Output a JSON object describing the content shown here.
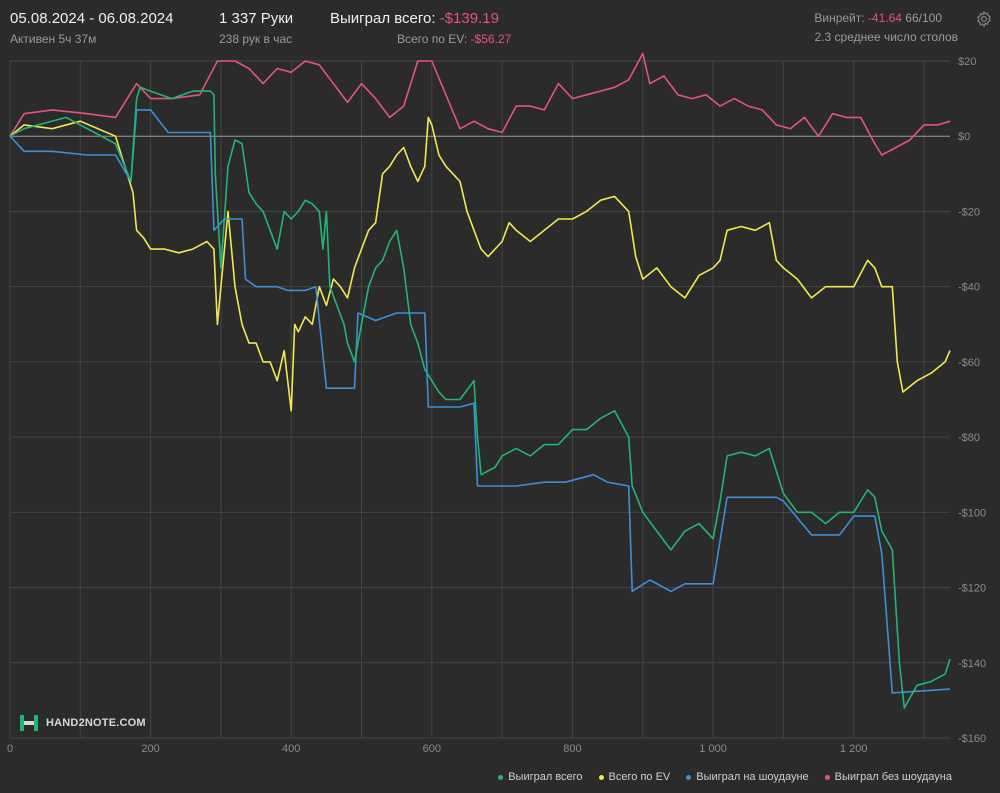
{
  "header": {
    "date_range": "05.08.2024 - 06.08.2024",
    "active": "Активен 5ч 37м",
    "hands": "1 337 Руки",
    "hands_rate": "238 рук в час",
    "won_label": "Выиграл всего:",
    "won_value": "-$139.19",
    "ev_label": "Всего по EV:",
    "ev_value": "-$56.27",
    "winrate_label": "Винрейт:",
    "winrate_value": "-41.64",
    "winrate_unit": "66/100",
    "avg_tables": "2.3 среднее число столов"
  },
  "logo_text": "HAND2NOTE.COM",
  "icons": {
    "settings": "gear-icon",
    "logo": "hand2note-logo"
  },
  "colors": {
    "background": "#2b2b2b",
    "grid": "#444444",
    "zero_line": "#9a9a9a",
    "won": "#22b573",
    "ev": "#f2e94e",
    "showdown": "#3d8fd9",
    "non_showdown": "#e5547a"
  },
  "chart_data": {
    "type": "line",
    "xlim": [
      0,
      1337
    ],
    "ylim": [
      -160,
      20
    ],
    "x_ticks": [
      0,
      200,
      400,
      600,
      800,
      1000,
      1200
    ],
    "x_tick_labels": [
      "0",
      "200",
      "400",
      "600",
      "800",
      "1 000",
      "1 200"
    ],
    "y_ticks": [
      20,
      0,
      -20,
      -40,
      -60,
      -80,
      -100,
      -120,
      -140,
      -160
    ],
    "y_tick_labels": [
      "$20",
      "$0",
      "-$20",
      "-$40",
      "-$60",
      "-$80",
      "-$100",
      "-$120",
      "-$140",
      "-$160"
    ],
    "grid": true,
    "legend_position": "bottom-right",
    "series": [
      {
        "name": "Выиграл всего",
        "color": "#22b573",
        "points": [
          [
            0,
            0
          ],
          [
            20,
            2
          ],
          [
            40,
            3
          ],
          [
            80,
            5
          ],
          [
            120,
            1
          ],
          [
            150,
            -2
          ],
          [
            172,
            -12
          ],
          [
            180,
            10
          ],
          [
            185,
            13
          ],
          [
            200,
            12
          ],
          [
            230,
            10
          ],
          [
            260,
            12
          ],
          [
            285,
            12
          ],
          [
            290,
            11
          ],
          [
            292,
            -10
          ],
          [
            300,
            -35
          ],
          [
            310,
            -8
          ],
          [
            320,
            -1
          ],
          [
            330,
            -2
          ],
          [
            340,
            -15
          ],
          [
            350,
            -18
          ],
          [
            360,
            -20
          ],
          [
            370,
            -25
          ],
          [
            380,
            -30
          ],
          [
            390,
            -20
          ],
          [
            400,
            -22
          ],
          [
            410,
            -20
          ],
          [
            420,
            -17
          ],
          [
            430,
            -18
          ],
          [
            440,
            -20
          ],
          [
            445,
            -30
          ],
          [
            450,
            -20
          ],
          [
            455,
            -40
          ],
          [
            465,
            -45
          ],
          [
            475,
            -50
          ],
          [
            480,
            -55
          ],
          [
            490,
            -60
          ],
          [
            500,
            -50
          ],
          [
            510,
            -40
          ],
          [
            520,
            -35
          ],
          [
            530,
            -33
          ],
          [
            540,
            -28
          ],
          [
            550,
            -25
          ],
          [
            560,
            -35
          ],
          [
            570,
            -50
          ],
          [
            580,
            -55
          ],
          [
            590,
            -62
          ],
          [
            600,
            -65
          ],
          [
            610,
            -68
          ],
          [
            620,
            -70
          ],
          [
            640,
            -70
          ],
          [
            660,
            -65
          ],
          [
            665,
            -80
          ],
          [
            670,
            -90
          ],
          [
            690,
            -88
          ],
          [
            700,
            -85
          ],
          [
            720,
            -83
          ],
          [
            740,
            -85
          ],
          [
            760,
            -82
          ],
          [
            780,
            -82
          ],
          [
            800,
            -78
          ],
          [
            820,
            -78
          ],
          [
            840,
            -75
          ],
          [
            860,
            -73
          ],
          [
            880,
            -80
          ],
          [
            885,
            -93
          ],
          [
            900,
            -100
          ],
          [
            920,
            -105
          ],
          [
            940,
            -110
          ],
          [
            960,
            -105
          ],
          [
            980,
            -103
          ],
          [
            1000,
            -107
          ],
          [
            1010,
            -97
          ],
          [
            1020,
            -85
          ],
          [
            1040,
            -84
          ],
          [
            1060,
            -85
          ],
          [
            1080,
            -83
          ],
          [
            1100,
            -95
          ],
          [
            1120,
            -100
          ],
          [
            1140,
            -100
          ],
          [
            1160,
            -103
          ],
          [
            1180,
            -100
          ],
          [
            1200,
            -100
          ],
          [
            1220,
            -94
          ],
          [
            1230,
            -96
          ],
          [
            1240,
            -105
          ],
          [
            1255,
            -110
          ],
          [
            1265,
            -140
          ],
          [
            1272,
            -152
          ],
          [
            1290,
            -146
          ],
          [
            1310,
            -145
          ],
          [
            1330,
            -143
          ],
          [
            1337,
            -139
          ]
        ]
      },
      {
        "name": "Всего по EV",
        "color": "#f2e94e",
        "points": [
          [
            0,
            0
          ],
          [
            20,
            3
          ],
          [
            60,
            2
          ],
          [
            100,
            4
          ],
          [
            150,
            0
          ],
          [
            175,
            -15
          ],
          [
            180,
            -25
          ],
          [
            190,
            -27
          ],
          [
            200,
            -30
          ],
          [
            220,
            -30
          ],
          [
            240,
            -31
          ],
          [
            260,
            -30
          ],
          [
            280,
            -28
          ],
          [
            290,
            -30
          ],
          [
            295,
            -50
          ],
          [
            300,
            -40
          ],
          [
            310,
            -20
          ],
          [
            320,
            -40
          ],
          [
            330,
            -50
          ],
          [
            340,
            -55
          ],
          [
            350,
            -55
          ],
          [
            360,
            -60
          ],
          [
            370,
            -60
          ],
          [
            380,
            -65
          ],
          [
            390,
            -57
          ],
          [
            400,
            -73
          ],
          [
            405,
            -50
          ],
          [
            410,
            -52
          ],
          [
            420,
            -48
          ],
          [
            430,
            -50
          ],
          [
            440,
            -40
          ],
          [
            450,
            -45
          ],
          [
            460,
            -38
          ],
          [
            470,
            -40
          ],
          [
            480,
            -43
          ],
          [
            490,
            -35
          ],
          [
            500,
            -30
          ],
          [
            510,
            -25
          ],
          [
            520,
            -23
          ],
          [
            530,
            -10
          ],
          [
            540,
            -8
          ],
          [
            550,
            -5
          ],
          [
            560,
            -3
          ],
          [
            570,
            -8
          ],
          [
            580,
            -12
          ],
          [
            590,
            -8
          ],
          [
            595,
            5
          ],
          [
            600,
            3
          ],
          [
            610,
            -5
          ],
          [
            620,
            -8
          ],
          [
            630,
            -10
          ],
          [
            640,
            -12
          ],
          [
            650,
            -20
          ],
          [
            660,
            -25
          ],
          [
            670,
            -30
          ],
          [
            680,
            -32
          ],
          [
            690,
            -30
          ],
          [
            700,
            -28
          ],
          [
            710,
            -23
          ],
          [
            720,
            -25
          ],
          [
            740,
            -28
          ],
          [
            760,
            -25
          ],
          [
            780,
            -22
          ],
          [
            800,
            -22
          ],
          [
            820,
            -20
          ],
          [
            840,
            -17
          ],
          [
            860,
            -16
          ],
          [
            880,
            -20
          ],
          [
            890,
            -32
          ],
          [
            900,
            -38
          ],
          [
            920,
            -35
          ],
          [
            940,
            -40
          ],
          [
            960,
            -43
          ],
          [
            980,
            -37
          ],
          [
            1000,
            -35
          ],
          [
            1010,
            -33
          ],
          [
            1020,
            -25
          ],
          [
            1040,
            -24
          ],
          [
            1060,
            -25
          ],
          [
            1080,
            -23
          ],
          [
            1090,
            -33
          ],
          [
            1100,
            -35
          ],
          [
            1120,
            -38
          ],
          [
            1140,
            -43
          ],
          [
            1160,
            -40
          ],
          [
            1180,
            -40
          ],
          [
            1200,
            -40
          ],
          [
            1220,
            -33
          ],
          [
            1230,
            -35
          ],
          [
            1240,
            -40
          ],
          [
            1255,
            -40
          ],
          [
            1262,
            -60
          ],
          [
            1270,
            -68
          ],
          [
            1290,
            -65
          ],
          [
            1310,
            -63
          ],
          [
            1330,
            -60
          ],
          [
            1337,
            -57
          ]
        ]
      },
      {
        "name": "Выиграл на шоудауне",
        "color": "#3d8fd9",
        "points": [
          [
            0,
            0
          ],
          [
            20,
            -4
          ],
          [
            60,
            -4
          ],
          [
            110,
            -5
          ],
          [
            150,
            -5
          ],
          [
            172,
            -12
          ],
          [
            180,
            7
          ],
          [
            200,
            7
          ],
          [
            225,
            1
          ],
          [
            265,
            1
          ],
          [
            285,
            1
          ],
          [
            290,
            -25
          ],
          [
            305,
            -22
          ],
          [
            330,
            -22
          ],
          [
            335,
            -38
          ],
          [
            350,
            -40
          ],
          [
            380,
            -40
          ],
          [
            395,
            -41
          ],
          [
            420,
            -41
          ],
          [
            435,
            -40
          ],
          [
            450,
            -67
          ],
          [
            490,
            -67
          ],
          [
            495,
            -47
          ],
          [
            520,
            -49
          ],
          [
            535,
            -48
          ],
          [
            550,
            -47
          ],
          [
            590,
            -47
          ],
          [
            595,
            -72
          ],
          [
            640,
            -72
          ],
          [
            660,
            -71
          ],
          [
            665,
            -93
          ],
          [
            720,
            -93
          ],
          [
            760,
            -92
          ],
          [
            790,
            -92
          ],
          [
            830,
            -90
          ],
          [
            850,
            -92
          ],
          [
            880,
            -93
          ],
          [
            885,
            -121
          ],
          [
            910,
            -118
          ],
          [
            940,
            -121
          ],
          [
            960,
            -119
          ],
          [
            980,
            -119
          ],
          [
            1000,
            -119
          ],
          [
            1020,
            -96
          ],
          [
            1060,
            -96
          ],
          [
            1090,
            -96
          ],
          [
            1100,
            -97
          ],
          [
            1140,
            -106
          ],
          [
            1180,
            -106
          ],
          [
            1200,
            -101
          ],
          [
            1230,
            -101
          ],
          [
            1240,
            -111
          ],
          [
            1255,
            -148
          ],
          [
            1337,
            -147
          ]
        ]
      },
      {
        "name": "Выиграл без шоудауна",
        "color": "#e5547a",
        "points": [
          [
            0,
            0
          ],
          [
            20,
            6
          ],
          [
            60,
            7
          ],
          [
            110,
            6
          ],
          [
            150,
            5
          ],
          [
            180,
            14
          ],
          [
            200,
            10
          ],
          [
            230,
            10
          ],
          [
            270,
            11
          ],
          [
            295,
            20
          ],
          [
            320,
            20
          ],
          [
            340,
            18
          ],
          [
            360,
            14
          ],
          [
            380,
            18
          ],
          [
            400,
            17
          ],
          [
            420,
            20
          ],
          [
            440,
            19
          ],
          [
            460,
            14
          ],
          [
            480,
            9
          ],
          [
            500,
            14
          ],
          [
            520,
            10
          ],
          [
            540,
            5
          ],
          [
            560,
            8
          ],
          [
            580,
            20
          ],
          [
            600,
            20
          ],
          [
            620,
            11
          ],
          [
            640,
            2
          ],
          [
            660,
            4
          ],
          [
            680,
            2
          ],
          [
            700,
            1
          ],
          [
            720,
            8
          ],
          [
            740,
            8
          ],
          [
            760,
            7
          ],
          [
            780,
            14
          ],
          [
            800,
            10
          ],
          [
            820,
            11
          ],
          [
            840,
            12
          ],
          [
            860,
            13
          ],
          [
            880,
            15
          ],
          [
            900,
            22
          ],
          [
            910,
            14
          ],
          [
            930,
            16
          ],
          [
            950,
            11
          ],
          [
            970,
            10
          ],
          [
            990,
            11
          ],
          [
            1010,
            8
          ],
          [
            1030,
            10
          ],
          [
            1050,
            8
          ],
          [
            1070,
            7
          ],
          [
            1090,
            3
          ],
          [
            1110,
            2
          ],
          [
            1130,
            5
          ],
          [
            1150,
            0
          ],
          [
            1170,
            6
          ],
          [
            1190,
            5
          ],
          [
            1210,
            5
          ],
          [
            1230,
            -2
          ],
          [
            1240,
            -5
          ],
          [
            1260,
            -3
          ],
          [
            1280,
            -1
          ],
          [
            1300,
            3
          ],
          [
            1320,
            3
          ],
          [
            1337,
            4
          ]
        ]
      }
    ]
  }
}
